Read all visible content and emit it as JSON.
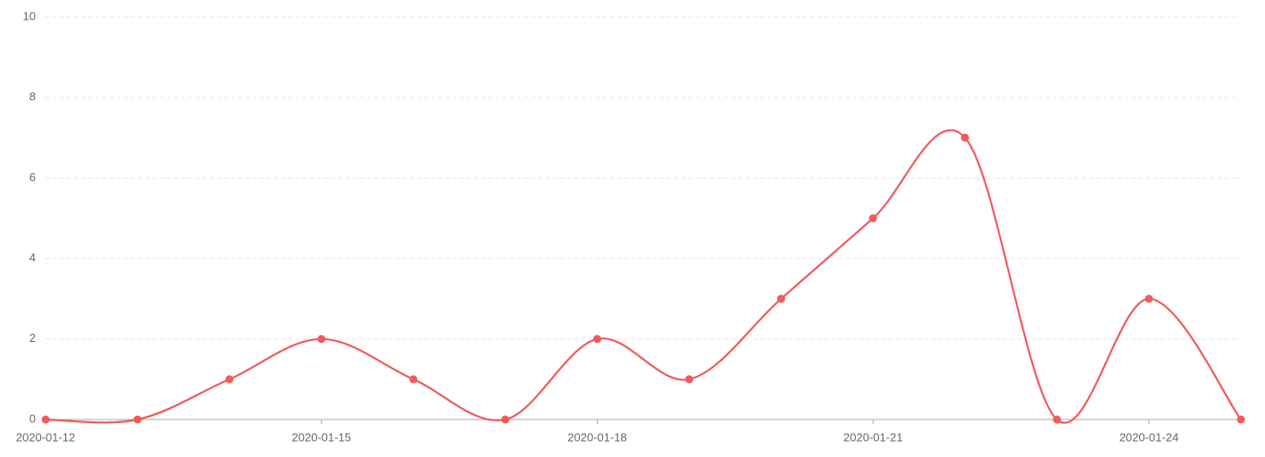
{
  "chart_data": {
    "type": "line",
    "categories": [
      "2020-01-12",
      null,
      null,
      "2020-01-15",
      null,
      null,
      "2020-01-18",
      null,
      null,
      "2020-01-21",
      null,
      null,
      "2020-01-24",
      null
    ],
    "series": [
      {
        "color": "#f05b5b",
        "values": [
          0,
          0,
          1,
          2,
          1,
          0,
          2,
          1,
          3,
          5,
          7,
          0,
          3,
          0
        ]
      }
    ],
    "ylim": [
      0,
      10
    ],
    "yticks": [
      0,
      2,
      4,
      6,
      8,
      10
    ],
    "grid": true,
    "smooth": true
  }
}
